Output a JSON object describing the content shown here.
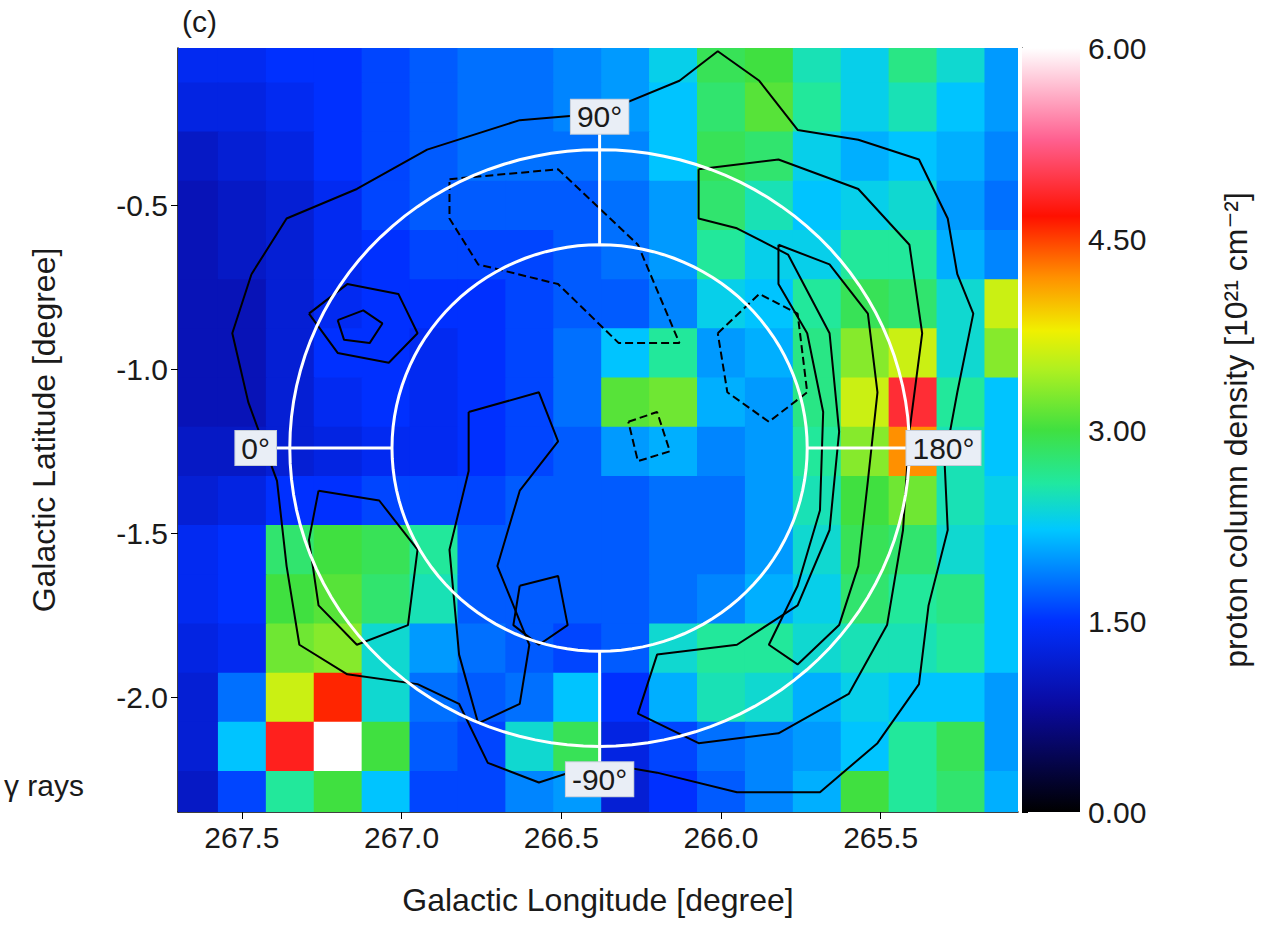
{
  "chart_data": {
    "type": "heatmap",
    "panel_label": "(c)",
    "annotation": "γ rays",
    "x_label": "Galactic Longitude [degree]",
    "y_label": "Galactic Latitude [degree]",
    "grid": false,
    "xlim": [
      267.7,
      265.07
    ],
    "ylim": [
      -2.35,
      -0.02
    ],
    "xticks": [
      267.5,
      {
        "value": 267,
        "label": "267.0"
      },
      266.5,
      {
        "value": 266,
        "label": "266.0"
      },
      265.5
    ],
    "yticks": [
      -0.5,
      {
        "value": -1,
        "label": "-1.0"
      },
      -1.5,
      {
        "value": -2,
        "label": "-2.0"
      }
    ],
    "x": [
      267.65,
      267.5,
      267.35,
      267.2,
      267.05,
      266.9,
      266.75,
      266.6,
      266.45,
      266.3,
      266.15,
      266.0,
      265.85,
      265.7,
      265.55,
      265.4,
      265.25,
      265.1
    ],
    "y": [
      -0.05,
      -0.2,
      -0.35,
      -0.5,
      -0.65,
      -0.8,
      -0.95,
      -1.1,
      -1.25,
      -1.4,
      -1.55,
      -1.7,
      -1.85,
      -2.0,
      -2.15,
      -2.3
    ],
    "cells": [
      [
        1.4,
        1.4,
        1.5,
        1.5,
        1.6,
        1.7,
        1.8,
        1.8,
        1.9,
        2.0,
        2.3,
        2.9,
        3.0,
        2.5,
        2.3,
        2.7,
        2.4,
        2.0
      ],
      [
        1.3,
        1.3,
        1.4,
        1.5,
        1.6,
        1.7,
        1.8,
        1.8,
        1.9,
        2.0,
        2.2,
        2.8,
        3.1,
        2.6,
        2.3,
        2.5,
        2.2,
        2.0
      ],
      [
        1.1,
        1.2,
        1.3,
        1.5,
        1.6,
        1.7,
        1.8,
        1.8,
        1.8,
        1.9,
        2.2,
        2.9,
        2.8,
        2.3,
        2.1,
        2.2,
        2.1,
        1.9
      ],
      [
        1.0,
        1.1,
        1.2,
        1.4,
        1.6,
        1.7,
        1.7,
        1.7,
        1.7,
        1.8,
        2.0,
        2.8,
        2.5,
        2.2,
        2.3,
        2.4,
        2.0,
        1.8
      ],
      [
        1.0,
        1.1,
        1.2,
        1.4,
        1.5,
        1.6,
        1.6,
        1.6,
        1.7,
        1.8,
        2.0,
        2.6,
        2.3,
        2.3,
        2.6,
        2.6,
        2.1,
        1.9
      ],
      [
        1.0,
        1.0,
        1.2,
        1.4,
        1.5,
        1.5,
        1.5,
        1.6,
        1.7,
        1.7,
        1.9,
        2.3,
        2.2,
        2.6,
        2.9,
        2.8,
        2.4,
        3.6
      ],
      [
        1.0,
        1.0,
        1.2,
        1.5,
        1.5,
        1.4,
        1.5,
        1.6,
        1.8,
        2.2,
        2.6,
        2.0,
        2.1,
        2.7,
        3.3,
        3.6,
        2.4,
        3.3
      ],
      [
        1.0,
        1.0,
        1.2,
        1.4,
        1.5,
        1.4,
        1.5,
        1.6,
        1.8,
        3.1,
        3.2,
        2.1,
        2.0,
        2.7,
        3.6,
        4.9,
        2.6,
        2.2
      ],
      [
        1.1,
        1.1,
        1.2,
        1.3,
        1.4,
        1.4,
        1.5,
        1.6,
        1.7,
        2.0,
        2.1,
        1.9,
        2.0,
        2.6,
        3.3,
        4.2,
        2.5,
        2.2
      ],
      [
        1.2,
        1.3,
        1.5,
        1.5,
        1.6,
        1.6,
        1.6,
        1.7,
        1.7,
        1.7,
        1.8,
        1.8,
        2.0,
        2.5,
        3.0,
        3.2,
        2.5,
        2.3
      ],
      [
        1.4,
        1.5,
        2.8,
        3.0,
        2.9,
        2.6,
        1.7,
        1.7,
        1.7,
        1.7,
        1.8,
        1.8,
        2.0,
        2.4,
        2.9,
        2.8,
        2.4,
        2.2
      ],
      [
        1.4,
        1.5,
        3.0,
        3.1,
        2.8,
        2.5,
        1.7,
        1.7,
        1.7,
        1.7,
        1.8,
        1.9,
        2.1,
        2.3,
        2.8,
        2.6,
        2.7,
        2.2
      ],
      [
        1.3,
        1.4,
        3.2,
        3.3,
        2.4,
        2.0,
        1.8,
        1.7,
        1.6,
        1.7,
        2.4,
        2.6,
        2.6,
        2.4,
        2.5,
        2.5,
        2.6,
        2.2
      ],
      [
        1.2,
        1.8,
        3.6,
        4.6,
        2.4,
        1.8,
        1.7,
        1.8,
        2.2,
        1.5,
        2.1,
        2.5,
        2.4,
        2.1,
        2.3,
        2.2,
        2.2,
        2.0
      ],
      [
        1.2,
        2.2,
        4.8,
        6.0,
        3.0,
        1.7,
        1.6,
        2.4,
        2.9,
        1.3,
        1.6,
        1.8,
        1.9,
        2.0,
        2.2,
        2.6,
        2.9,
        2.0
      ],
      [
        1.1,
        1.6,
        2.6,
        3.0,
        2.2,
        1.6,
        1.6,
        1.9,
        2.0,
        1.2,
        1.5,
        1.7,
        1.9,
        2.1,
        3.0,
        2.6,
        2.8,
        2.1
      ]
    ],
    "colorbar": {
      "label": "proton column density [10²¹ cm⁻²]",
      "range": [
        0,
        6
      ],
      "ticks": [
        {
          "value": 0,
          "label": "0.00"
        },
        {
          "value": 1.5,
          "label": "1.50"
        },
        {
          "value": 3,
          "label": "3.00"
        },
        {
          "value": 4.5,
          "label": "4.50"
        },
        {
          "value": 6,
          "label": "6.00"
        }
      ]
    },
    "contours": [
      {
        "line_style": "solid",
        "x": [
          267.47,
          267.36,
          267.14,
          266.92,
          266.63,
          266.38,
          266.13,
          266.01,
          265.88,
          265.76,
          265.57,
          265.38,
          265.29,
          265.26,
          265.21,
          265.26,
          265.3,
          265.29,
          265.35,
          265.38,
          265.51,
          265.69,
          265.95,
          266.2,
          266.38,
          266.57,
          266.73,
          266.82,
          266.95,
          267.17,
          267.32,
          267.36,
          267.39,
          267.48,
          267.53
        ],
        "y": [
          -0.71,
          -0.54,
          -0.45,
          -0.33,
          -0.24,
          -0.22,
          -0.12,
          -0.03,
          -0.12,
          -0.27,
          -0.3,
          -0.36,
          -0.54,
          -0.71,
          -0.83,
          -1.07,
          -1.28,
          -1.49,
          -1.72,
          -1.96,
          -2.14,
          -2.29,
          -2.29,
          -2.23,
          -2.2,
          -2.26,
          -2.2,
          -2.02,
          -1.96,
          -1.93,
          -1.84,
          -1.6,
          -1.34,
          -1.1,
          -0.89
        ]
      },
      {
        "line_style": "solid",
        "x": [
          266.07,
          265.82,
          265.57,
          265.41,
          265.37,
          265.41,
          265.43,
          265.48,
          265.6,
          265.82,
          266.07,
          266.26,
          266.2,
          265.95,
          265.76,
          265.66,
          265.63,
          265.66,
          265.79,
          265.95,
          266.07
        ],
        "y": [
          -0.39,
          -0.36,
          -0.45,
          -0.62,
          -0.89,
          -1.19,
          -1.49,
          -1.78,
          -1.99,
          -2.11,
          -2.14,
          -2.05,
          -1.87,
          -1.84,
          -1.72,
          -1.49,
          -1.19,
          -0.89,
          -0.65,
          -0.57,
          -0.54
        ]
      },
      {
        "line_style": "solid",
        "x": [
          265.82,
          265.66,
          265.54,
          265.51,
          265.54,
          265.57,
          265.63,
          265.76,
          265.85,
          265.76,
          265.69,
          265.68,
          265.73,
          265.82
        ],
        "y": [
          -0.62,
          -0.68,
          -0.83,
          -1.07,
          -1.34,
          -1.6,
          -1.78,
          -1.9,
          -1.84,
          -1.66,
          -1.43,
          -1.13,
          -0.89,
          -0.74
        ]
      },
      {
        "line_style": "solid",
        "x": [
          267.29,
          267.17,
          267.01,
          266.95,
          267.04,
          267.2
        ],
        "y": [
          -0.83,
          -0.74,
          -0.77,
          -0.89,
          -0.98,
          -0.95
        ]
      },
      {
        "line_style": "solid",
        "x": [
          267.2,
          267.12,
          267.06,
          267.1,
          267.18
        ],
        "y": [
          -0.85,
          -0.82,
          -0.86,
          -0.92,
          -0.91
        ]
      },
      {
        "line_style": "solid",
        "x": [
          267.26,
          267.07,
          266.95,
          266.98,
          267.14,
          267.26,
          267.29
        ],
        "y": [
          -1.37,
          -1.4,
          -1.55,
          -1.78,
          -1.84,
          -1.72,
          -1.52
        ]
      },
      {
        "line_style": "solid",
        "x": [
          266.79,
          266.57,
          266.51,
          266.63,
          266.7,
          266.6,
          266.63,
          266.76,
          266.82,
          266.85,
          266.79
        ],
        "y": [
          -1.13,
          -1.07,
          -1.22,
          -1.37,
          -1.6,
          -1.84,
          -2.02,
          -2.08,
          -1.87,
          -1.55,
          -1.31
        ]
      },
      {
        "line_style": "solid",
        "x": [
          266.63,
          266.51,
          266.48,
          266.57,
          266.65
        ],
        "y": [
          -1.66,
          -1.63,
          -1.78,
          -1.84,
          -1.78
        ]
      },
      {
        "line_style": "dashed",
        "x": [
          266.85,
          266.51,
          266.26,
          266.13,
          266.32,
          266.51,
          266.76,
          266.85
        ],
        "y": [
          -0.42,
          -0.39,
          -0.62,
          -0.92,
          -0.92,
          -0.74,
          -0.68,
          -0.54
        ]
      },
      {
        "line_style": "dashed",
        "x": [
          266.01,
          265.88,
          265.76,
          265.73,
          265.85,
          265.98
        ],
        "y": [
          -0.89,
          -0.77,
          -0.83,
          -1.07,
          -1.16,
          -1.07
        ]
      },
      {
        "line_style": "dashed",
        "x": [
          266.29,
          266.2,
          266.16,
          266.26
        ],
        "y": [
          -1.16,
          -1.13,
          -1.25,
          -1.28
        ]
      }
    ],
    "rings": {
      "center": [
        266.38,
        -1.24
      ],
      "radii": [
        [
          0.97,
          0.91
        ],
        [
          0.65,
          0.62
        ]
      ],
      "color": "#ffffff"
    },
    "angles": [
      {
        "value": 90,
        "label": "90°"
      },
      {
        "value": 0,
        "label": "0°"
      },
      {
        "value": 180,
        "label": "180°"
      },
      {
        "value": -90,
        "label": "-90°"
      }
    ]
  }
}
